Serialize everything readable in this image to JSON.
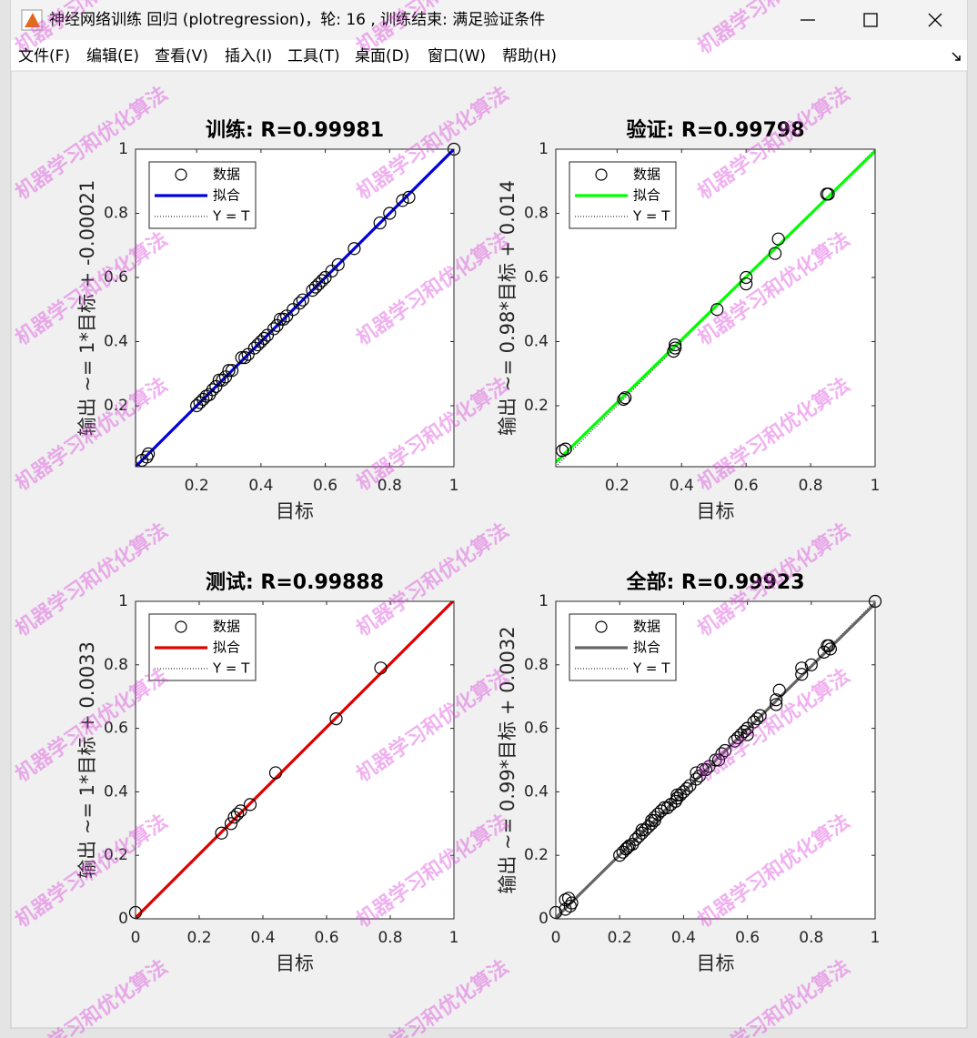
{
  "window": {
    "title": "神经网络训练 回归 (plotregression)，轮: 16 , 训练结束: 满足验证条件"
  },
  "menu": [
    "文件(F)",
    "编辑(E)",
    "查看(V)",
    "插入(I)",
    "工具(T)",
    "桌面(D)",
    "窗口(W)",
    "帮助(H)"
  ],
  "watermark": "机器学习和优化算法",
  "chart_data": [
    {
      "type": "scatter",
      "title": "训练: R=0.99981",
      "xlabel": "目标",
      "ylabel": "输出 ~= 1*目标 + -0.00021",
      "xlim": [
        0.01,
        1
      ],
      "ylim": [
        0.01,
        1
      ],
      "xticks": [
        0.2,
        0.4,
        0.6,
        0.8,
        1
      ],
      "yticks": [
        0.2,
        0.4,
        0.6,
        0.8,
        1
      ],
      "grid": false,
      "legend": "upper left",
      "series": [
        {
          "name": "数据",
          "color": "#000000",
          "style": "marker",
          "x": [
            0.03,
            0.045,
            0.05,
            0.2,
            0.21,
            0.22,
            0.23,
            0.24,
            0.25,
            0.26,
            0.27,
            0.28,
            0.29,
            0.3,
            0.31,
            0.34,
            0.35,
            0.36,
            0.38,
            0.39,
            0.4,
            0.41,
            0.42,
            0.44,
            0.45,
            0.46,
            0.47,
            0.48,
            0.5,
            0.52,
            0.53,
            0.56,
            0.57,
            0.58,
            0.59,
            0.6,
            0.62,
            0.64,
            0.69,
            0.77,
            0.8,
            0.84,
            0.86,
            1
          ],
          "values": [
            0.03,
            0.04,
            0.05,
            0.2,
            0.21,
            0.22,
            0.23,
            0.235,
            0.25,
            0.26,
            0.28,
            0.28,
            0.29,
            0.31,
            0.31,
            0.35,
            0.35,
            0.36,
            0.38,
            0.39,
            0.4,
            0.41,
            0.42,
            0.44,
            0.45,
            0.47,
            0.47,
            0.48,
            0.5,
            0.52,
            0.53,
            0.56,
            0.57,
            0.58,
            0.59,
            0.6,
            0.62,
            0.64,
            0.69,
            0.77,
            0.8,
            0.84,
            0.85,
            1
          ]
        },
        {
          "name": "拟合",
          "color": "#0000e0",
          "style": "line",
          "x": [
            0.01,
            1
          ],
          "values": [
            0.0098,
            0.9998
          ]
        },
        {
          "name": "Y = T",
          "color": "#000000",
          "style": "dotted",
          "x": [
            0.01,
            1
          ],
          "values": [
            0.01,
            1
          ]
        }
      ]
    },
    {
      "type": "scatter",
      "title": "验证: R=0.99798",
      "xlabel": "目标",
      "ylabel": "输出 ~= 0.98*目标 + 0.014",
      "xlim": [
        0.01,
        1
      ],
      "ylim": [
        0.01,
        1
      ],
      "xticks": [
        0.2,
        0.4,
        0.6,
        0.8,
        1
      ],
      "yticks": [
        0.2,
        0.4,
        0.6,
        0.8,
        1
      ],
      "grid": false,
      "legend": "upper left",
      "series": [
        {
          "name": "数据",
          "color": "#000000",
          "style": "marker",
          "x": [
            0.03,
            0.04,
            0.22,
            0.225,
            0.375,
            0.38,
            0.38,
            0.51,
            0.6,
            0.6,
            0.69,
            0.7,
            0.85,
            0.855
          ],
          "values": [
            0.06,
            0.065,
            0.22,
            0.225,
            0.37,
            0.38,
            0.39,
            0.5,
            0.58,
            0.6,
            0.675,
            0.72,
            0.86,
            0.86
          ]
        },
        {
          "name": "拟合",
          "color": "#00ff00",
          "style": "line",
          "x": [
            0.01,
            1
          ],
          "values": [
            0.0238,
            0.994
          ]
        },
        {
          "name": "Y = T",
          "color": "#000000",
          "style": "dotted",
          "x": [
            0.01,
            1
          ],
          "values": [
            0.01,
            1
          ]
        }
      ]
    },
    {
      "type": "scatter",
      "title": "测试: R=0.99888",
      "xlabel": "目标",
      "ylabel": "输出 ~= 1*目标 + 0.0033",
      "xlim": [
        0,
        1
      ],
      "ylim": [
        0,
        1
      ],
      "xticks": [
        0,
        0.2,
        0.4,
        0.6,
        0.8,
        1
      ],
      "yticks": [
        0,
        0.2,
        0.4,
        0.6,
        0.8,
        1
      ],
      "grid": false,
      "legend": "upper left",
      "series": [
        {
          "name": "数据",
          "color": "#000000",
          "style": "marker",
          "x": [
            0,
            0.27,
            0.3,
            0.31,
            0.32,
            0.33,
            0.36,
            0.44,
            0.63,
            0.77
          ],
          "values": [
            0.02,
            0.27,
            0.3,
            0.32,
            0.33,
            0.34,
            0.36,
            0.46,
            0.63,
            0.79
          ]
        },
        {
          "name": "拟合",
          "color": "#e00000",
          "style": "line",
          "x": [
            0,
            1
          ],
          "values": [
            0.0033,
            1.0033
          ]
        },
        {
          "name": "Y = T",
          "color": "#000000",
          "style": "dotted",
          "x": [
            0,
            1
          ],
          "values": [
            0,
            1
          ]
        }
      ]
    },
    {
      "type": "scatter",
      "title": "全部: R=0.99923",
      "xlabel": "目标",
      "ylabel": "输出 ~= 0.99*目标 + 0.0032",
      "xlim": [
        0,
        1
      ],
      "ylim": [
        0,
        1
      ],
      "xticks": [
        0,
        0.2,
        0.4,
        0.6,
        0.8,
        1
      ],
      "yticks": [
        0,
        0.2,
        0.4,
        0.6,
        0.8,
        1
      ],
      "grid": false,
      "legend": "upper left",
      "series": [
        {
          "name": "数据",
          "color": "#000000",
          "style": "marker",
          "x": [
            0.03,
            0.045,
            0.05,
            0.2,
            0.21,
            0.22,
            0.23,
            0.24,
            0.25,
            0.26,
            0.27,
            0.28,
            0.29,
            0.3,
            0.31,
            0.34,
            0.35,
            0.36,
            0.38,
            0.39,
            0.4,
            0.41,
            0.42,
            0.44,
            0.45,
            0.46,
            0.47,
            0.48,
            0.5,
            0.52,
            0.53,
            0.56,
            0.57,
            0.58,
            0.59,
            0.6,
            0.62,
            0.64,
            0.69,
            0.77,
            0.8,
            0.84,
            0.86,
            1,
            0.03,
            0.04,
            0.22,
            0.225,
            0.375,
            0.38,
            0.38,
            0.51,
            0.6,
            0.6,
            0.69,
            0.7,
            0.85,
            0.855,
            0,
            0.27,
            0.3,
            0.31,
            0.32,
            0.33,
            0.36,
            0.44,
            0.63,
            0.77
          ],
          "values": [
            0.03,
            0.04,
            0.05,
            0.2,
            0.21,
            0.22,
            0.23,
            0.235,
            0.25,
            0.26,
            0.28,
            0.28,
            0.29,
            0.31,
            0.31,
            0.35,
            0.35,
            0.36,
            0.38,
            0.39,
            0.4,
            0.41,
            0.42,
            0.44,
            0.45,
            0.47,
            0.47,
            0.48,
            0.5,
            0.52,
            0.53,
            0.56,
            0.57,
            0.58,
            0.59,
            0.6,
            0.62,
            0.64,
            0.69,
            0.77,
            0.8,
            0.84,
            0.85,
            1,
            0.06,
            0.065,
            0.22,
            0.225,
            0.37,
            0.38,
            0.39,
            0.5,
            0.58,
            0.6,
            0.675,
            0.72,
            0.86,
            0.86,
            0.02,
            0.27,
            0.3,
            0.32,
            0.33,
            0.34,
            0.36,
            0.46,
            0.63,
            0.79
          ]
        },
        {
          "name": "拟合",
          "color": "#666666",
          "style": "line",
          "x": [
            0,
            1
          ],
          "values": [
            0.0032,
            0.9932
          ]
        },
        {
          "name": "Y = T",
          "color": "#000000",
          "style": "dotted",
          "x": [
            0,
            1
          ],
          "values": [
            0,
            1
          ]
        }
      ]
    }
  ]
}
